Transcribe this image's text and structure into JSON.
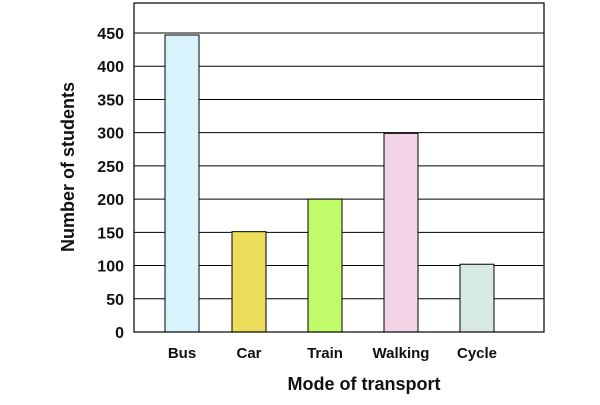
{
  "chart_data": {
    "type": "bar",
    "title": "",
    "xlabel": "Mode of transport",
    "ylabel": "Number of students",
    "categories": [
      "Bus",
      "Car",
      "Train",
      "Walking",
      "Cycle"
    ],
    "values": [
      447,
      151,
      200,
      299,
      102
    ],
    "colors": [
      "#d9f3fc",
      "#ecdd5c",
      "#c0fc6a",
      "#f2d4e6",
      "#d6eae2"
    ],
    "ylim": [
      0,
      450
    ],
    "yticks": [
      0,
      50,
      100,
      150,
      200,
      250,
      300,
      350,
      400,
      450
    ],
    "grid": true,
    "legend": "none"
  }
}
